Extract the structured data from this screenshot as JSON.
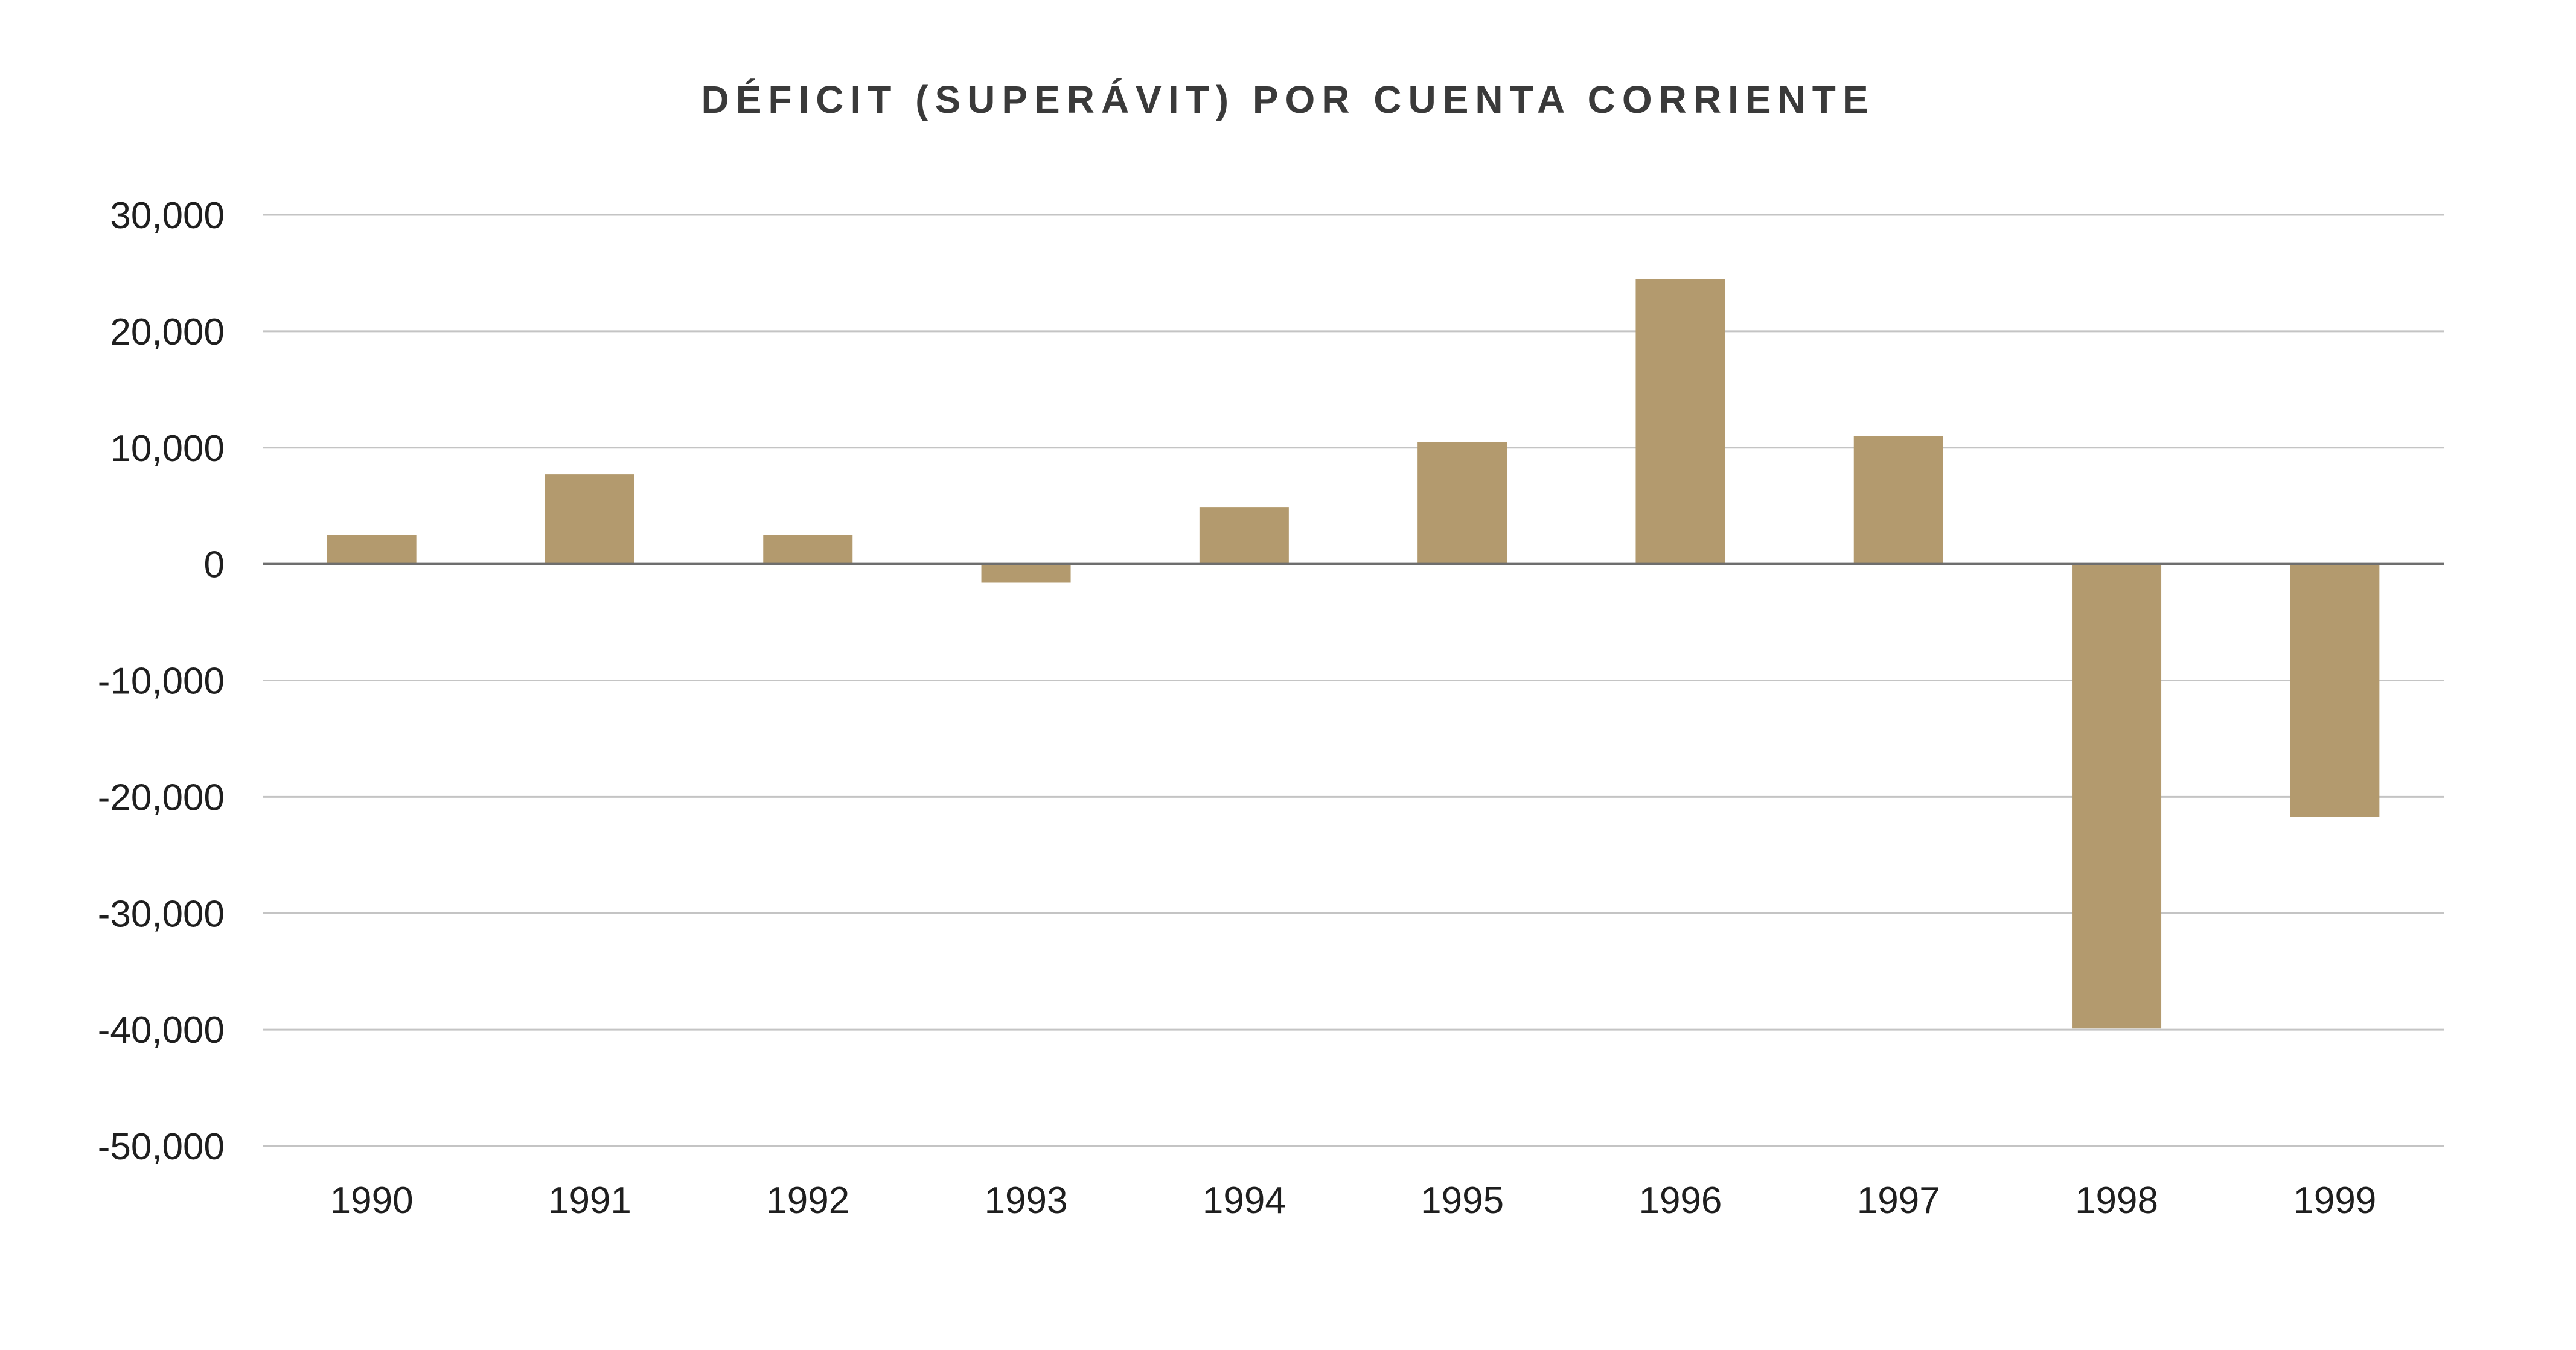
{
  "chart_data": {
    "type": "bar",
    "title": "DÉFICIT (SUPERÁVIT) POR CUENTA CORRIENTE",
    "xlabel": "",
    "ylabel": "",
    "categories": [
      "1990",
      "1991",
      "1992",
      "1993",
      "1994",
      "1995",
      "1996",
      "1997",
      "1998",
      "1999"
    ],
    "values": [
      2500,
      7700,
      2500,
      -1600,
      4900,
      10500,
      24500,
      11000,
      -39900,
      -21700
    ],
    "ylim": [
      -50000,
      30000
    ],
    "yticks": [
      30000,
      20000,
      10000,
      0,
      -10000,
      -20000,
      -30000,
      -40000,
      -50000
    ],
    "ytick_labels": [
      "30,000",
      "20,000",
      "10,000",
      "0",
      "-10,000",
      "-20,000",
      "-30,000",
      "-40,000",
      "-50,000"
    ],
    "grid": true,
    "legend": "none",
    "bar_color": "#b39a6e"
  }
}
